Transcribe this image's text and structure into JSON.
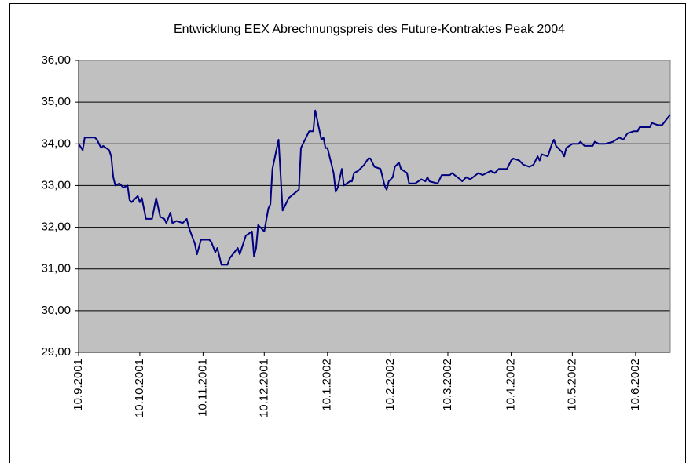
{
  "chart_data": {
    "type": "line",
    "title": "Entwicklung EEX Abrechnungspreis des Future-Kontraktes Peak 2004",
    "x": [
      "10.9.2001",
      "12.9.2001",
      "13.9.2001",
      "15.9.2001",
      "18.9.2001",
      "19.9.2001",
      "21.9.2001",
      "22.9.2001",
      "25.9.2001",
      "26.9.2001",
      "27.9.2001",
      "28.9.2001",
      "30.9.2001",
      "2.10.2001",
      "4.10.2001",
      "5.10.2001",
      "6.10.2001",
      "9.10.2001",
      "10.10.2001",
      "11.10.2001",
      "13.10.2001",
      "16.10.2001",
      "18.10.2001",
      "20.10.2001",
      "22.10.2001",
      "23.10.2001",
      "25.10.2001",
      "26.10.2001",
      "28.10.2001",
      "31.10.2001",
      "2.11.2001",
      "3.11.2001",
      "6.11.2001",
      "7.11.2001",
      "9.11.2001",
      "13.11.2001",
      "14.11.2001",
      "16.11.2001",
      "17.11.2001",
      "18.11.2001",
      "19.11.2001",
      "22.11.2001",
      "23.11.2001",
      "27.11.2001",
      "28.11.2001",
      "1.12.2001",
      "4.12.2001",
      "5.12.2001",
      "6.12.2001",
      "7.12.2001",
      "9.12.2001",
      "10.12.2001",
      "12.12.2001",
      "13.12.2001",
      "14.12.2001",
      "17.12.2001",
      "19.12.2001",
      "20.12.2001",
      "22.12.2001",
      "27.12.2001",
      "28.12.2001",
      "1.1.2002",
      "3.1.2002",
      "4.1.2002",
      "7.1.2002",
      "8.1.2002",
      "9.1.2002",
      "10.1.2002",
      "13.1.2002",
      "14.1.2002",
      "15.1.2002",
      "17.1.2002",
      "18.1.2002",
      "21.1.2002",
      "22.1.2002",
      "23.1.2002",
      "25.1.2002",
      "28.1.2002",
      "30.1.2002",
      "31.1.2002",
      "2.2.2002",
      "5.2.2002",
      "7.2.2002",
      "8.2.2002",
      "9.2.2002",
      "11.2.2002",
      "12.2.2002",
      "14.2.2002",
      "15.2.2002",
      "18.2.2002",
      "19.2.2002",
      "22.2.2002",
      "25.2.2002",
      "27.2.2002",
      "28.2.2002",
      "1.3.2002",
      "5.3.2002",
      "7.3.2002",
      "11.3.2002",
      "12.3.2002",
      "16.3.2002",
      "17.3.2002",
      "19.3.2002",
      "21.3.2002",
      "25.3.2002",
      "27.3.2002",
      "31.3.2002",
      "2.4.2002",
      "4.4.2002",
      "8.4.2002",
      "10.4.2002",
      "11.4.2002",
      "14.4.2002",
      "16.4.2002",
      "19.4.2002",
      "21.4.2002",
      "23.4.2002",
      "24.4.2002",
      "25.4.2002",
      "28.4.2002",
      "30.4.2002",
      "1.5.2002",
      "2.5.2002",
      "5.5.2002",
      "6.5.2002",
      "7.5.2002",
      "10.5.2002",
      "13.5.2002",
      "14.5.2002",
      "16.5.2002",
      "20.5.2002",
      "21.5.2002",
      "23.5.2002",
      "26.5.2002",
      "30.5.2002",
      "2.6.2002",
      "4.6.2002",
      "6.6.2002",
      "9.6.2002",
      "11.6.2002",
      "12.6.2002",
      "17.6.2002",
      "18.6.2002",
      "21.6.2002",
      "23.6.2002",
      "27.6.2002"
    ],
    "series": [
      {
        "color": "#000080",
        "values": [
          34.0,
          33.85,
          34.15,
          34.15,
          34.15,
          34.1,
          33.9,
          33.95,
          33.85,
          33.7,
          33.2,
          33.0,
          33.05,
          32.95,
          33.0,
          32.65,
          32.6,
          32.75,
          32.6,
          32.7,
          32.2,
          32.2,
          32.7,
          32.25,
          32.2,
          32.1,
          32.35,
          32.1,
          32.15,
          32.1,
          32.2,
          32.0,
          31.6,
          31.35,
          31.7,
          31.7,
          31.65,
          31.4,
          31.5,
          31.3,
          31.1,
          31.1,
          31.25,
          31.5,
          31.35,
          31.8,
          31.9,
          31.3,
          31.5,
          32.05,
          31.95,
          31.9,
          32.45,
          32.55,
          33.4,
          34.1,
          32.4,
          32.5,
          32.7,
          32.9,
          33.9,
          34.3,
          34.3,
          34.8,
          34.1,
          34.15,
          33.9,
          33.9,
          33.3,
          32.85,
          32.95,
          33.4,
          33.0,
          33.1,
          33.1,
          33.3,
          33.35,
          33.5,
          33.65,
          33.65,
          33.45,
          33.4,
          33.0,
          32.9,
          33.1,
          33.2,
          33.45,
          33.55,
          33.4,
          33.3,
          33.05,
          33.05,
          33.15,
          33.1,
          33.2,
          33.1,
          33.05,
          33.25,
          33.25,
          33.3,
          33.15,
          33.1,
          33.2,
          33.15,
          33.3,
          33.25,
          33.35,
          33.3,
          33.4,
          33.4,
          33.6,
          33.65,
          33.6,
          33.5,
          33.45,
          33.5,
          33.7,
          33.6,
          33.75,
          33.7,
          34.0,
          34.1,
          33.95,
          33.8,
          33.7,
          33.9,
          34.0,
          34.0,
          34.05,
          33.95,
          33.95,
          34.05,
          34.0,
          34.0,
          34.05,
          34.15,
          34.1,
          34.25,
          34.3,
          34.3,
          34.4,
          34.4,
          34.5,
          34.45,
          34.45,
          34.7
        ]
      }
    ],
    "xlim": [
      "10.9.2001",
      "27.6.2002"
    ],
    "xticks": [
      "10.9.2001",
      "10.10.2001",
      "10.11.2001",
      "10.12.2001",
      "10.1.2002",
      "10.2.2002",
      "10.3.2002",
      "10.4.2002",
      "10.5.2002",
      "10.6.2002"
    ],
    "ylim": [
      29,
      36
    ],
    "yticks": [
      {
        "value": 29,
        "label": "29,00"
      },
      {
        "value": 30,
        "label": "30,00"
      },
      {
        "value": 31,
        "label": "31,00"
      },
      {
        "value": 32,
        "label": "32,00"
      },
      {
        "value": 33,
        "label": "33,00"
      },
      {
        "value": 34,
        "label": "34,00"
      },
      {
        "value": 35,
        "label": "35,00"
      },
      {
        "value": 36,
        "label": "36,00"
      }
    ],
    "grid": true,
    "plot_background": "#c0c0c0"
  }
}
